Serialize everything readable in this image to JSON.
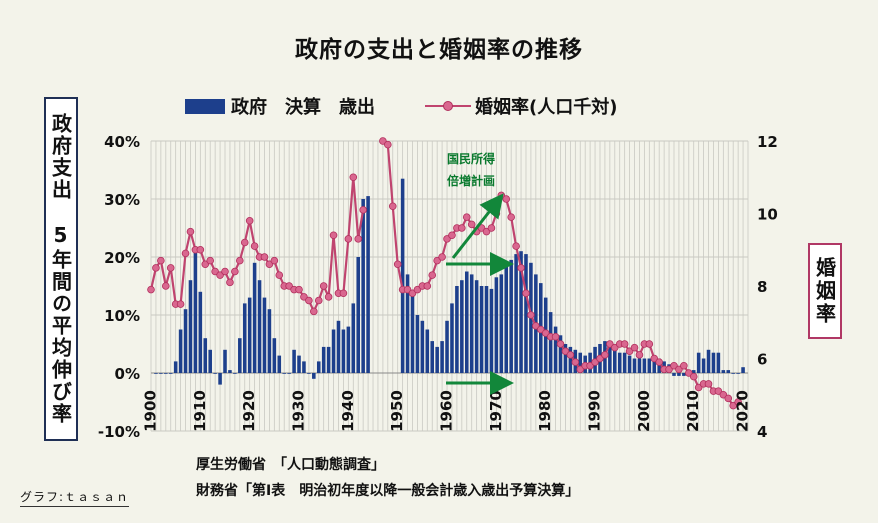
{
  "title": "政府の支出と婚姻率の推移",
  "legend": {
    "bar_label": "政府　決算　歳出",
    "line_label": "婚姻率(人口千対)"
  },
  "left_axis_title": "政府支出　5年間の平均伸び率",
  "right_axis_title": "婚姻率",
  "annotation": {
    "line1": "国民所得",
    "line2": "倍増計画"
  },
  "sources": {
    "line1": "厚生労働省　「人口動態調査」",
    "line2": "財務省「第Ⅰ表　明治初年度以降一般会計歳入歳出予算決算」"
  },
  "credit": "グラフ:ｔａｓａｎ",
  "colors": {
    "bar": "#1d3f8c",
    "line": "#c0446f",
    "marker": "#d9678f",
    "arrow": "#12873a",
    "annotation": "#0a7a2e"
  },
  "chart_data": {
    "type": "bar",
    "title": "政府の支出と婚姻率の推移",
    "x_range": [
      1900,
      2021
    ],
    "x_ticks": [
      "1900",
      "1910",
      "1920",
      "1930",
      "1940",
      "1950",
      "1960",
      "1970",
      "1980",
      "1990",
      "2000",
      "2010",
      "2020"
    ],
    "y_left": {
      "range": [
        -10,
        40
      ],
      "ticks": [
        "40%",
        "30%",
        "20%",
        "10%",
        "0%",
        "-10%"
      ]
    },
    "y_right": {
      "range": [
        4,
        12
      ],
      "ticks": [
        "12",
        "10",
        "8",
        "6",
        "4"
      ]
    },
    "grid": true,
    "legend_position": "top",
    "series": [
      {
        "name": "政府　決算　歳出",
        "kind": "bar",
        "axis": "left",
        "years": [
          1901,
          1902,
          1903,
          1904,
          1905,
          1906,
          1907,
          1908,
          1909,
          1910,
          1911,
          1912,
          1913,
          1914,
          1915,
          1916,
          1917,
          1918,
          1919,
          1920,
          1921,
          1922,
          1923,
          1924,
          1925,
          1926,
          1927,
          1928,
          1929,
          1930,
          1931,
          1932,
          1933,
          1934,
          1935,
          1936,
          1937,
          1938,
          1939,
          1940,
          1941,
          1942,
          1943,
          1944,
          1951,
          1952,
          1953,
          1954,
          1955,
          1956,
          1957,
          1958,
          1959,
          1960,
          1961,
          1962,
          1963,
          1964,
          1965,
          1966,
          1967,
          1968,
          1969,
          1970,
          1971,
          1972,
          1973,
          1974,
          1975,
          1976,
          1977,
          1978,
          1979,
          1980,
          1981,
          1982,
          1983,
          1984,
          1985,
          1986,
          1987,
          1988,
          1989,
          1990,
          1991,
          1992,
          1993,
          1994,
          1995,
          1996,
          1997,
          1998,
          1999,
          2000,
          2001,
          2002,
          2003,
          2004,
          2005,
          2006,
          2007,
          2008,
          2009,
          2010,
          2011,
          2012,
          2013,
          2014,
          2015,
          2016,
          2017,
          2018,
          2019,
          2020
        ],
        "values": [
          0,
          0,
          0,
          0,
          2,
          7.5,
          11,
          16,
          21,
          14,
          6,
          4,
          0,
          -2,
          4,
          0.5,
          0,
          6,
          12,
          13,
          19,
          16,
          13,
          11,
          6,
          3,
          0,
          0,
          4,
          3,
          2,
          0,
          -1,
          2,
          4.5,
          4.5,
          7.5,
          9,
          7.5,
          8,
          12,
          20,
          30,
          30.5,
          33.5,
          17,
          14,
          10,
          9,
          7.5,
          5.5,
          4.5,
          5.5,
          9,
          12,
          15,
          16,
          17.5,
          17,
          16,
          15,
          15,
          14.5,
          16.5,
          17,
          18.5,
          19.5,
          20.5,
          21,
          20.5,
          19,
          17,
          15.5,
          13,
          10.5,
          8,
          6.5,
          5,
          4.5,
          4,
          3.5,
          3,
          3.5,
          4.5,
          5,
          5.5,
          4.5,
          4.5,
          3.5,
          3.5,
          3,
          2.5,
          2.5,
          2.5,
          2.5,
          2.5,
          2.5,
          2,
          1.5,
          -0.5,
          -0.5,
          -0.5,
          0.5,
          0.5,
          3.5,
          2.5,
          4,
          3.5,
          3.5,
          0.5,
          0.5,
          0,
          0,
          1
        ]
      },
      {
        "name": "婚姻率(人口千対)",
        "kind": "line",
        "axis": "right",
        "years": [
          1900,
          1901,
          1902,
          1903,
          1904,
          1905,
          1906,
          1907,
          1908,
          1909,
          1910,
          1911,
          1912,
          1913,
          1914,
          1915,
          1916,
          1917,
          1918,
          1919,
          1920,
          1921,
          1922,
          1923,
          1924,
          1925,
          1926,
          1927,
          1928,
          1929,
          1930,
          1931,
          1932,
          1933,
          1934,
          1935,
          1936,
          1937,
          1938,
          1939,
          1940,
          1941,
          1942,
          1943,
          1947,
          1948,
          1949,
          1950,
          1951,
          1952,
          1953,
          1954,
          1955,
          1956,
          1957,
          1958,
          1959,
          1960,
          1961,
          1962,
          1963,
          1964,
          1965,
          1966,
          1967,
          1968,
          1969,
          1970,
          1971,
          1972,
          1973,
          1974,
          1975,
          1976,
          1977,
          1978,
          1979,
          1980,
          1981,
          1982,
          1983,
          1984,
          1985,
          1986,
          1987,
          1988,
          1989,
          1990,
          1991,
          1992,
          1993,
          1994,
          1995,
          1996,
          1997,
          1998,
          1999,
          2000,
          2001,
          2002,
          2003,
          2004,
          2005,
          2006,
          2007,
          2008,
          2009,
          2010,
          2011,
          2012,
          2013,
          2014,
          2015,
          2016,
          2017,
          2018,
          2019
        ],
        "values": [
          7.9,
          8.5,
          8.7,
          8.0,
          8.5,
          7.5,
          7.5,
          8.9,
          9.5,
          9.0,
          9.0,
          8.6,
          8.7,
          8.4,
          8.3,
          8.4,
          8.1,
          8.4,
          8.7,
          9.2,
          9.8,
          9.1,
          8.8,
          8.8,
          8.6,
          8.7,
          8.3,
          8.0,
          8.0,
          7.9,
          7.9,
          7.7,
          7.6,
          7.3,
          7.6,
          8.0,
          7.7,
          9.4,
          7.8,
          7.8,
          9.3,
          11.0,
          9.3,
          10.1,
          12.0,
          11.9,
          10.2,
          8.6,
          7.9,
          7.9,
          7.8,
          7.9,
          8.0,
          8.0,
          8.3,
          8.7,
          8.8,
          9.3,
          9.4,
          9.6,
          9.6,
          9.9,
          9.7,
          9.5,
          9.6,
          9.5,
          9.6,
          10.0,
          10.5,
          10.4,
          9.9,
          9.1,
          8.5,
          7.8,
          7.2,
          6.9,
          6.8,
          6.7,
          6.6,
          6.6,
          6.4,
          6.2,
          6.1,
          5.9,
          5.7,
          5.8,
          5.8,
          5.9,
          6.0,
          6.1,
          6.4,
          6.3,
          6.4,
          6.4,
          6.2,
          6.3,
          6.1,
          6.4,
          6.4,
          6.0,
          5.9,
          5.7,
          5.7,
          5.8,
          5.7,
          5.8,
          5.6,
          5.5,
          5.2,
          5.3,
          5.3,
          5.1,
          5.1,
          5.0,
          4.9,
          4.7,
          4.8
        ]
      }
    ],
    "annotations": [
      {
        "text": "国民所得倍増計画",
        "year_start": 1960,
        "year_end": 1970
      }
    ]
  }
}
